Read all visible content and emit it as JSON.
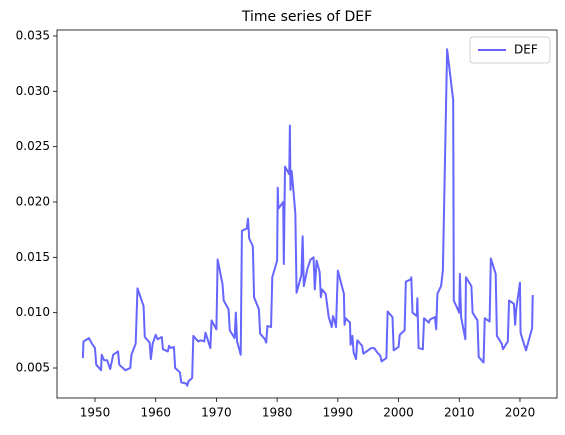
{
  "chart_data": {
    "type": "line",
    "title": "Time series of DEF",
    "x": [
      1948,
      1948.1,
      1949,
      1949.5,
      1950,
      1950.2,
      1951,
      1951.1,
      1951.5,
      1952,
      1952.5,
      1953,
      1953.8,
      1954,
      1955,
      1955.8,
      1956,
      1956.7,
      1957,
      1958,
      1958.2,
      1959,
      1959.2,
      1959.5,
      1960,
      1960.3,
      1961,
      1961.2,
      1962,
      1962.2,
      1962.5,
      1963,
      1963.2,
      1964,
      1964.2,
      1965,
      1965.2,
      1965.4,
      1966,
      1966.2,
      1967,
      1967.4,
      1968,
      1968.2,
      1969,
      1969.2,
      1970,
      1970.2,
      1971,
      1971.2,
      1972,
      1972.2,
      1973,
      1973.2,
      1973.4,
      1974,
      1974.2,
      1975,
      1975.2,
      1975.4,
      1976,
      1976.2,
      1977,
      1977.2,
      1978,
      1978.2,
      1978.4,
      1979,
      1979.2,
      1980,
      1980.1,
      1980.2,
      1981,
      1981.1,
      1981.3,
      1982,
      1982.1,
      1982.2,
      1982.4,
      1983,
      1983.2,
      1984,
      1984.2,
      1984.4,
      1985,
      1985.5,
      1986,
      1986.2,
      1986.5,
      1987,
      1987.2,
      1987.4,
      1988,
      1988.5,
      1989,
      1989.2,
      1989.5,
      1989.7,
      1990,
      1991,
      1991.1,
      1991.3,
      1992,
      1992.1,
      1992.4,
      1992.6,
      1993,
      1993.2,
      1994,
      1994.2,
      1995,
      1995.5,
      1996,
      1996.5,
      1997,
      1997.2,
      1998,
      1998.2,
      1999,
      1999.2,
      2000,
      2000.2,
      2001,
      2001.2,
      2002,
      2002.1,
      2002.3,
      2003,
      2003.1,
      2003.3,
      2004,
      2004.2,
      2005,
      2005.2,
      2006,
      2006.2,
      2006.4,
      2007,
      2007.3,
      2008,
      2009,
      2009.1,
      2010,
      2010.1,
      2010.3,
      2011,
      2011.1,
      2012,
      2012.2,
      2013,
      2013.2,
      2014,
      2014.2,
      2015,
      2015.2,
      2016,
      2016.2,
      2017,
      2017.2,
      2018,
      2018.2,
      2019,
      2019.2,
      2019.4,
      2020,
      2020.1,
      2020.3,
      2021,
      2022,
      2022.1
    ],
    "series": [
      {
        "name": "DEF",
        "color": "#6666ff",
        "values": [
          0.0059,
          0.0074,
          0.0077,
          0.0072,
          0.0068,
          0.0053,
          0.0048,
          0.0062,
          0.0057,
          0.0057,
          0.0049,
          0.0062,
          0.0065,
          0.0053,
          0.0048,
          0.005,
          0.0062,
          0.0072,
          0.0122,
          0.0106,
          0.0078,
          0.0073,
          0.0058,
          0.0072,
          0.008,
          0.0076,
          0.0078,
          0.0067,
          0.0065,
          0.007,
          0.0068,
          0.0069,
          0.005,
          0.0046,
          0.0037,
          0.0036,
          0.0034,
          0.0038,
          0.0041,
          0.0079,
          0.0074,
          0.0075,
          0.0074,
          0.0082,
          0.0068,
          0.0093,
          0.0085,
          0.0148,
          0.0126,
          0.0111,
          0.0103,
          0.0084,
          0.0077,
          0.01,
          0.0074,
          0.0062,
          0.0174,
          0.0176,
          0.0185,
          0.0167,
          0.016,
          0.0114,
          0.0103,
          0.0081,
          0.0076,
          0.0073,
          0.0088,
          0.0087,
          0.0132,
          0.0147,
          0.0213,
          0.0194,
          0.02,
          0.0144,
          0.0232,
          0.0225,
          0.0269,
          0.0211,
          0.0228,
          0.019,
          0.0118,
          0.0134,
          0.0169,
          0.0124,
          0.014,
          0.0148,
          0.015,
          0.0121,
          0.0147,
          0.0137,
          0.0114,
          0.0121,
          0.0117,
          0.0096,
          0.0087,
          0.0097,
          0.0092,
          0.0087,
          0.0138,
          0.0117,
          0.0089,
          0.0095,
          0.0091,
          0.0071,
          0.0079,
          0.0064,
          0.0058,
          0.0075,
          0.007,
          0.0063,
          0.0066,
          0.0068,
          0.0068,
          0.0064,
          0.0061,
          0.0056,
          0.0059,
          0.0101,
          0.0096,
          0.0066,
          0.0069,
          0.008,
          0.0084,
          0.0128,
          0.013,
          0.0132,
          0.01,
          0.0097,
          0.0113,
          0.0068,
          0.0067,
          0.0095,
          0.0091,
          0.0094,
          0.0096,
          0.0085,
          0.0117,
          0.0124,
          0.0138,
          0.0338,
          0.0292,
          0.0111,
          0.01,
          0.0135,
          0.0096,
          0.0076,
          0.0132,
          0.0124,
          0.01,
          0.0093,
          0.006,
          0.0055,
          0.0095,
          0.0092,
          0.0149,
          0.0135,
          0.0079,
          0.0072,
          0.0067,
          0.0074,
          0.0111,
          0.0108,
          0.0089,
          0.0104,
          0.0127,
          0.0082,
          0.0078,
          0.0066,
          0.0086,
          0.0116
        ]
      }
    ],
    "xlim": [
      1943.74,
      2026.1
    ],
    "ylim": [
      0.00229,
      0.03554
    ],
    "xticks": [
      1950,
      1960,
      1970,
      1980,
      1990,
      2000,
      2010,
      2020
    ],
    "yticks": [
      0.005,
      {
        "value": 0.01,
        "label": "0.010"
      },
      0.015,
      {
        "value": 0.02,
        "label": "0.020"
      },
      0.025,
      {
        "value": 0.03,
        "label": "0.030"
      },
      0.035
    ],
    "legend": "upper right",
    "grid": false
  }
}
